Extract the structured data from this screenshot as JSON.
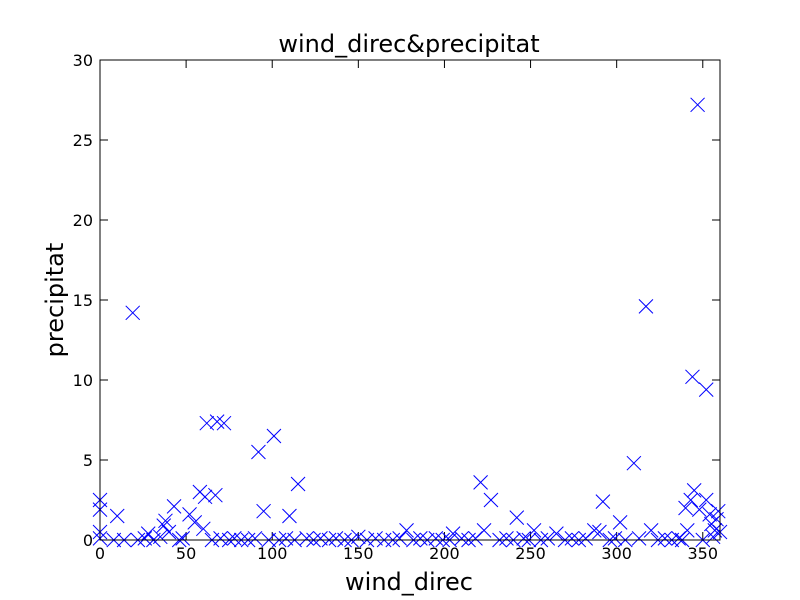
{
  "chart_data": {
    "type": "scatter",
    "title": "wind_direc&precipitat",
    "xlabel": "wind_direc",
    "ylabel": "precipitat",
    "xlim": [
      0,
      360
    ],
    "ylim": [
      0,
      30
    ],
    "xticks": [
      0,
      50,
      100,
      150,
      200,
      250,
      300,
      350
    ],
    "yticks": [
      0,
      5,
      10,
      15,
      20,
      25,
      30
    ],
    "grid": false,
    "marker": "x",
    "color": "#0000ff",
    "series": [
      {
        "points": [
          [
            0,
            2.5
          ],
          [
            0,
            1.9
          ],
          [
            0,
            0.5
          ],
          [
            0,
            0.1
          ],
          [
            10,
            1.5
          ],
          [
            19,
            14.2
          ],
          [
            28,
            0.4
          ],
          [
            37,
            0.9
          ],
          [
            38,
            1.2
          ],
          [
            40,
            0.5
          ],
          [
            43,
            2.1
          ],
          [
            52,
            1.6
          ],
          [
            55,
            1.1
          ],
          [
            58,
            3.0
          ],
          [
            60,
            0.7
          ],
          [
            61,
            2.7
          ],
          [
            62,
            7.3
          ],
          [
            67,
            2.8
          ],
          [
            68,
            7.4
          ],
          [
            72,
            7.3
          ],
          [
            92,
            5.5
          ],
          [
            95,
            1.8
          ],
          [
            101,
            6.5
          ],
          [
            110,
            1.5
          ],
          [
            115,
            3.5
          ],
          [
            178,
            0.6
          ],
          [
            205,
            0.4
          ],
          [
            221,
            3.6
          ],
          [
            223,
            0.6
          ],
          [
            227,
            2.5
          ],
          [
            242,
            1.4
          ],
          [
            252,
            0.6
          ],
          [
            265,
            0.4
          ],
          [
            287,
            0.6
          ],
          [
            290,
            0.5
          ],
          [
            292,
            2.4
          ],
          [
            302,
            1.1
          ],
          [
            310,
            4.8
          ],
          [
            317,
            14.6
          ],
          [
            320,
            0.6
          ],
          [
            340,
            2.0
          ],
          [
            341,
            0.6
          ],
          [
            343,
            2.5
          ],
          [
            344,
            10.2
          ],
          [
            345,
            3.1
          ],
          [
            347,
            27.2
          ],
          [
            348,
            1.9
          ],
          [
            352,
            2.5
          ],
          [
            352,
            9.4
          ],
          [
            354,
            1.6
          ],
          [
            355,
            1.0
          ],
          [
            357,
            0.6
          ],
          [
            358,
            1.3
          ],
          [
            359,
            1.8
          ],
          [
            360,
            0.5
          ],
          [
            8,
            0.0
          ],
          [
            14,
            0.0
          ],
          [
            22,
            0.0
          ],
          [
            26,
            0.1
          ],
          [
            31,
            0.0
          ],
          [
            35,
            0.2
          ],
          [
            46,
            0.0
          ],
          [
            48,
            0.1
          ],
          [
            65,
            0.0
          ],
          [
            70,
            0.1
          ],
          [
            75,
            0.0
          ],
          [
            78,
            0.1
          ],
          [
            82,
            0.0
          ],
          [
            86,
            0.0
          ],
          [
            90,
            0.1
          ],
          [
            98,
            0.0
          ],
          [
            104,
            0.0
          ],
          [
            108,
            0.1
          ],
          [
            113,
            0.0
          ],
          [
            120,
            0.1
          ],
          [
            124,
            0.0
          ],
          [
            128,
            0.1
          ],
          [
            133,
            0.0
          ],
          [
            137,
            0.1
          ],
          [
            142,
            0.0
          ],
          [
            146,
            0.0
          ],
          [
            150,
            0.2
          ],
          [
            155,
            0.0
          ],
          [
            160,
            0.1
          ],
          [
            165,
            0.0
          ],
          [
            170,
            0.0
          ],
          [
            174,
            0.1
          ],
          [
            182,
            0.0
          ],
          [
            186,
            0.1
          ],
          [
            190,
            0.0
          ],
          [
            195,
            0.1
          ],
          [
            199,
            0.0
          ],
          [
            203,
            0.0
          ],
          [
            210,
            0.1
          ],
          [
            214,
            0.0
          ],
          [
            218,
            0.1
          ],
          [
            232,
            0.0
          ],
          [
            236,
            0.1
          ],
          [
            240,
            0.0
          ],
          [
            246,
            0.1
          ],
          [
            249,
            0.0
          ],
          [
            256,
            0.0
          ],
          [
            260,
            0.1
          ],
          [
            270,
            0.0
          ],
          [
            274,
            0.1
          ],
          [
            278,
            0.0
          ],
          [
            282,
            0.1
          ],
          [
            296,
            0.0
          ],
          [
            299,
            0.1
          ],
          [
            305,
            0.0
          ],
          [
            313,
            0.1
          ],
          [
            324,
            0.0
          ],
          [
            328,
            0.1
          ],
          [
            332,
            0.0
          ],
          [
            336,
            0.1
          ],
          [
            338,
            0.0
          ],
          [
            350,
            0.0
          ],
          [
            356,
            0.2
          ]
        ]
      }
    ]
  }
}
